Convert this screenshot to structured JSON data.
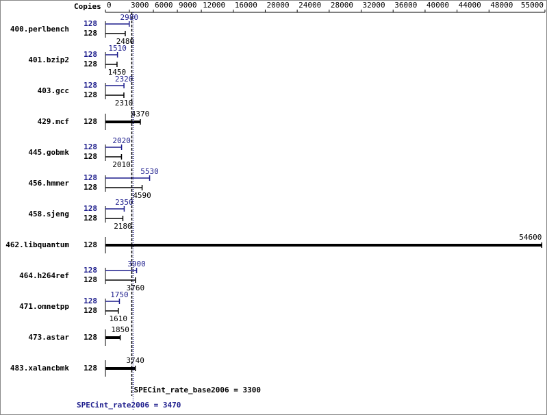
{
  "chart_data": {
    "type": "bar",
    "orientation": "horizontal",
    "copies_label": "Copies",
    "categories": [
      "400.perlbench",
      "401.bzip2",
      "403.gcc",
      "429.mcf",
      "445.gobmk",
      "456.hmmer",
      "458.sjeng",
      "462.libquantum",
      "464.h264ref",
      "471.omnetpp",
      "473.astar",
      "483.xalancbmk"
    ],
    "xlim": [
      0,
      55000
    ],
    "xticks": [
      0,
      3000,
      6000,
      9000,
      12000,
      16000,
      20000,
      24000,
      28000,
      32000,
      36000,
      40000,
      44000,
      48000,
      55000
    ],
    "series": [
      {
        "color": "#1c1c8c",
        "copies": [
          128,
          128,
          128,
          null,
          128,
          128,
          128,
          null,
          128,
          128,
          null,
          null
        ],
        "values": [
          2980,
          1510,
          2320,
          null,
          2020,
          5530,
          2350,
          null,
          3900,
          1750,
          null,
          null
        ]
      },
      {
        "color": "#000000",
        "copies": [
          128,
          128,
          128,
          128,
          128,
          128,
          128,
          128,
          128,
          128,
          128,
          128
        ],
        "values": [
          2480,
          1450,
          2310,
          4370,
          2010,
          4590,
          2180,
          54600,
          3760,
          1610,
          1850,
          3740
        ]
      }
    ],
    "reference_lines": [
      {
        "label": "SPECint_rate_base2006 = 3300",
        "value": 3300,
        "color": "#000000"
      },
      {
        "label": "SPECint_rate2006 = 3470",
        "value": 3470,
        "color": "#1c1c8c"
      }
    ]
  }
}
